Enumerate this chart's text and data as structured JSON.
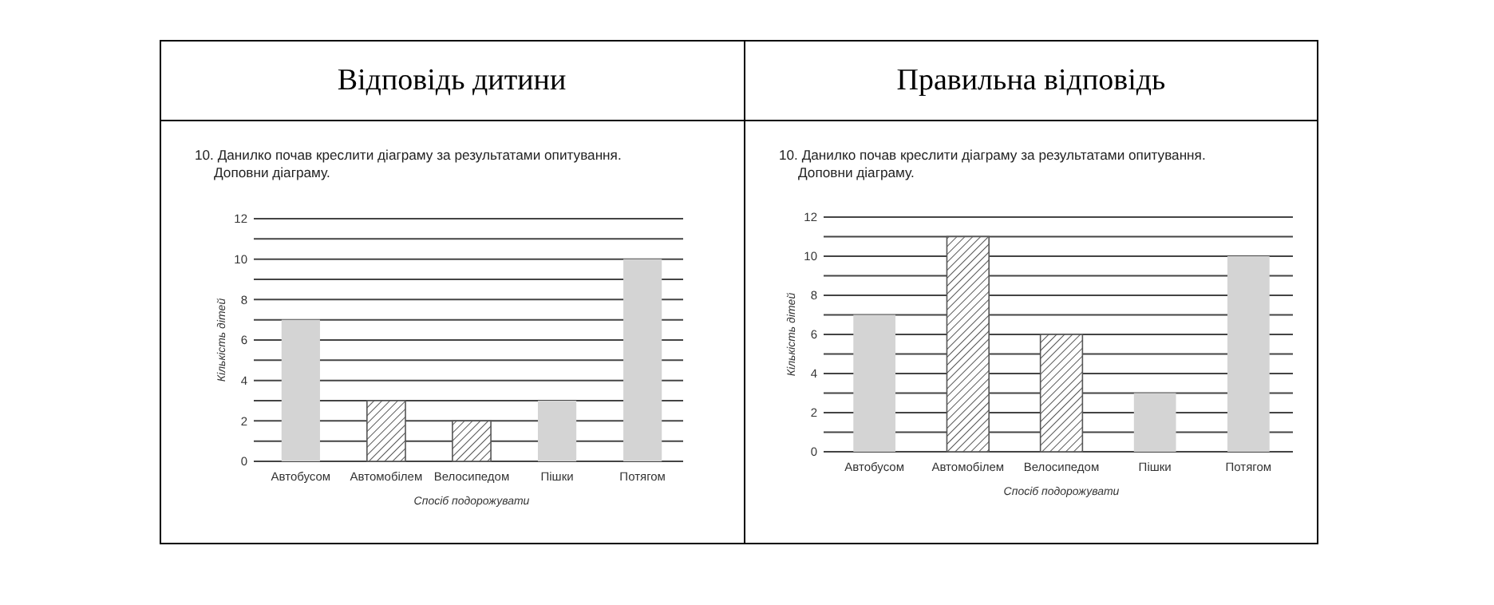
{
  "chart_data": [
    {
      "type": "bar",
      "title": "Відповідь дитини",
      "subtitle": "10. Данилко почав креслити діаграму за результатами опитування. Доповни діаграму.",
      "xlabel": "Спосіб подорожувати",
      "ylabel": "Кількість дітей",
      "categories": [
        "Автобусом",
        "Автомобілем",
        "Велосипедом",
        "Пішки",
        "Потягом"
      ],
      "values": [
        7,
        3,
        2,
        3,
        10
      ],
      "colors": [
        "#d4d4d4",
        "#555555",
        "#555555",
        "#d4d4d4",
        "#d4d4d4"
      ],
      "ylim": [
        0,
        12
      ],
      "yticks": [
        0,
        {
          "value": 1,
          "label": null
        },
        2,
        {
          "value": 3,
          "label": null
        },
        4,
        {
          "value": 5,
          "label": null
        },
        6,
        {
          "value": 7,
          "label": null
        },
        8,
        {
          "value": 9,
          "label": null
        },
        10,
        {
          "value": 11,
          "label": null
        },
        12
      ],
      "grid": "y"
    },
    {
      "type": "bar",
      "title": "Правильна відповідь",
      "subtitle": "10. Данилко почав креслити діаграму за результатами опитування. Доповни діаграму.",
      "xlabel": "Спосіб подорожувати",
      "ylabel": "Кількість дітей",
      "categories": [
        "Автобусом",
        "Автомобілем",
        "Велосипедом",
        "Пішки",
        "Потягом"
      ],
      "values": [
        7,
        11,
        6,
        3,
        10
      ],
      "colors": [
        "#d4d4d4",
        "#555555",
        "#555555",
        "#d4d4d4",
        "#d4d4d4"
      ],
      "ylim": [
        0,
        12
      ],
      "yticks": [
        0,
        {
          "value": 1,
          "label": null
        },
        2,
        {
          "value": 3,
          "label": null
        },
        4,
        {
          "value": 5,
          "label": null
        },
        6,
        {
          "value": 7,
          "label": null
        },
        8,
        {
          "value": 9,
          "label": null
        },
        10,
        {
          "value": 11,
          "label": null
        },
        12
      ],
      "grid": "y"
    }
  ]
}
